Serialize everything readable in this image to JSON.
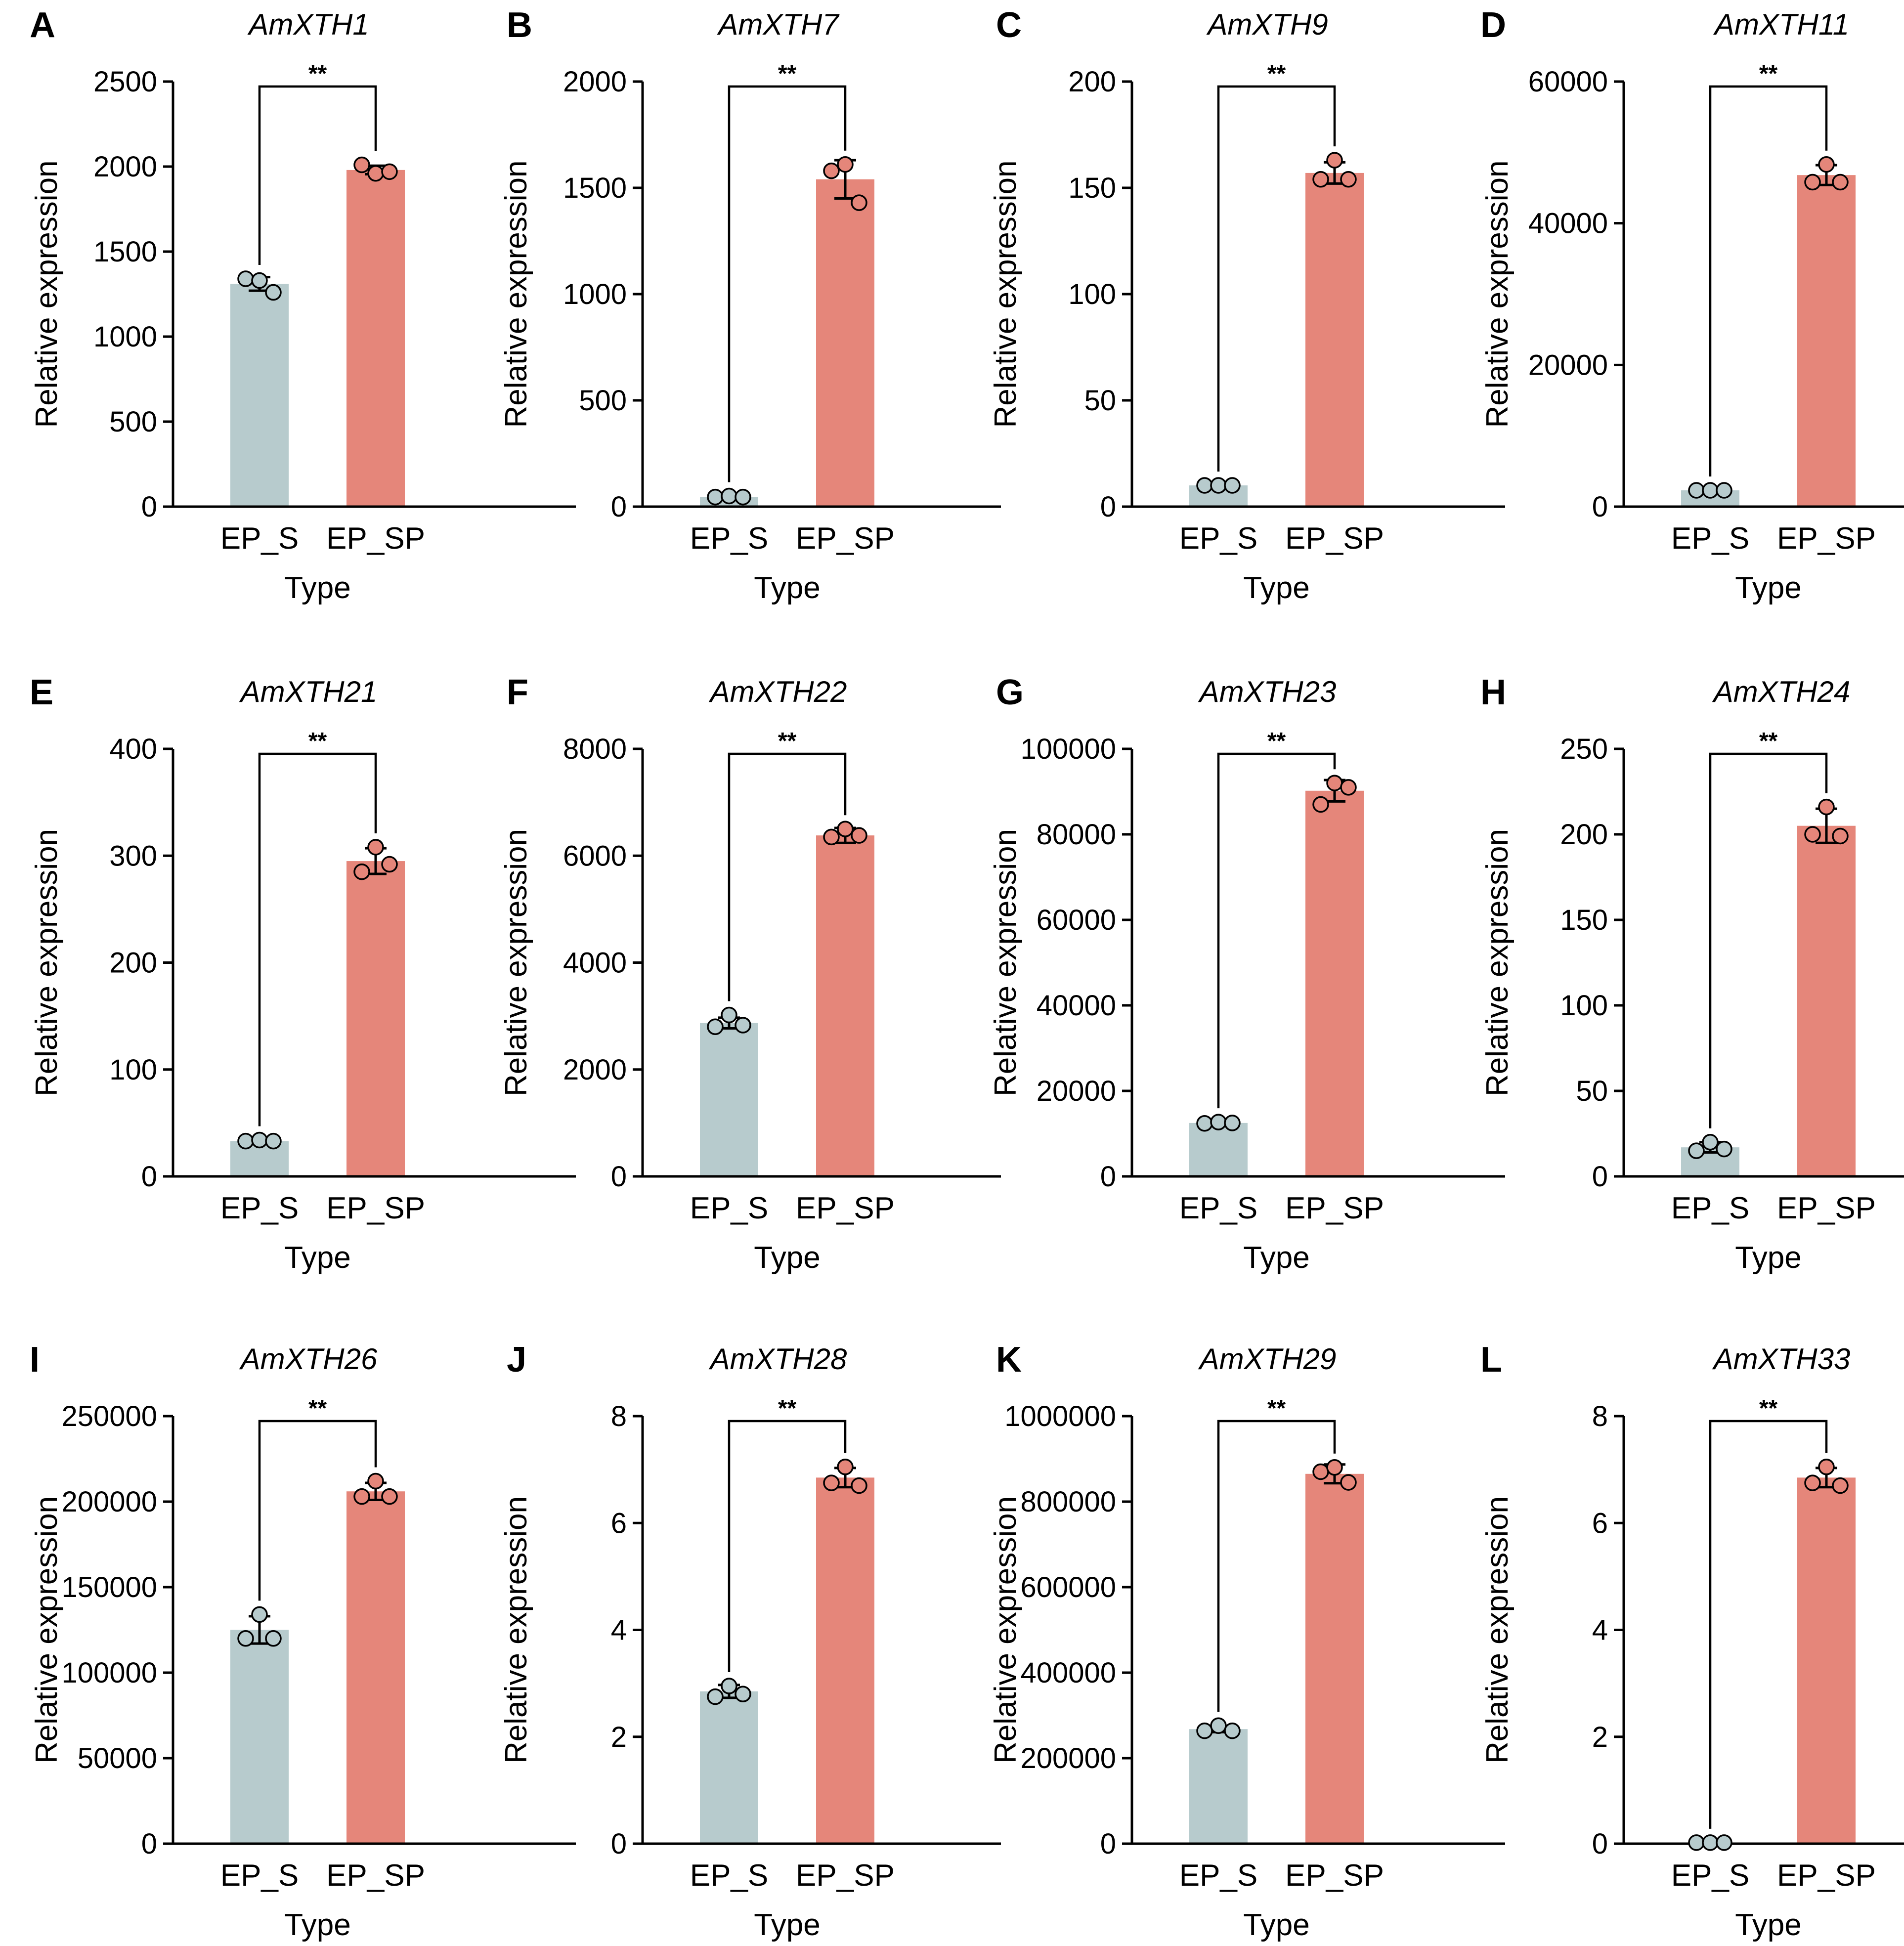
{
  "colors": {
    "ep_s_bar": "#b7cbcd",
    "ep_sp_bar": "#e5867a",
    "ep_s_point": "#b7cbcd",
    "ep_sp_point": "#e5867a",
    "axis": "#000000"
  },
  "chart_data": [
    {
      "panel": "A",
      "title": "AmXTH1",
      "type": "bar",
      "categories": [
        "EP_S",
        "EP_SP"
      ],
      "values": [
        1310,
        1980
      ],
      "points": [
        [
          1340,
          1330,
          1260
        ],
        [
          2010,
          1960,
          1970
        ]
      ],
      "errors": [
        40,
        25
      ],
      "ylim": [
        0,
        2500
      ],
      "yticks": [
        "0",
        "500",
        "1000",
        "1500",
        "2000",
        "2500"
      ],
      "ylabel": "Relative expression",
      "xlabel": "Type",
      "significance": "**"
    },
    {
      "panel": "B",
      "title": "AmXTH7",
      "type": "bar",
      "categories": [
        "EP_S",
        "EP_SP"
      ],
      "values": [
        45,
        1540
      ],
      "points": [
        [
          45,
          50,
          45
        ],
        [
          1580,
          1610,
          1430
        ]
      ],
      "errors": [
        3,
        90
      ],
      "ylim": [
        0,
        2000
      ],
      "yticks": [
        "0",
        "500",
        "1000",
        "1500",
        "2000"
      ],
      "ylabel": "Relative expression",
      "xlabel": "Type",
      "significance": "**"
    },
    {
      "panel": "C",
      "title": "AmXTH9",
      "type": "bar",
      "categories": [
        "EP_S",
        "EP_SP"
      ],
      "values": [
        10,
        157
      ],
      "points": [
        [
          10,
          10,
          10
        ],
        [
          154,
          163,
          154
        ]
      ],
      "errors": [
        0.5,
        5
      ],
      "ylim": [
        0,
        200
      ],
      "yticks": [
        "0",
        "50",
        "100",
        "150",
        "200"
      ],
      "ylabel": "Relative expression",
      "xlabel": "Type",
      "significance": "**"
    },
    {
      "panel": "D",
      "title": "AmXTH11",
      "type": "bar",
      "categories": [
        "EP_S",
        "EP_SP"
      ],
      "values": [
        2300,
        46800
      ],
      "points": [
        [
          2300,
          2300,
          2300
        ],
        [
          45800,
          48300,
          45800
        ]
      ],
      "errors": [
        100,
        1400
      ],
      "ylim": [
        0,
        60000
      ],
      "yticks": [
        "0",
        "20000",
        "40000",
        "60000"
      ],
      "ylabel": "Relative expression",
      "xlabel": "Type",
      "significance": "**"
    },
    {
      "panel": "E",
      "title": "AmXTH21",
      "type": "bar",
      "categories": [
        "EP_S",
        "EP_SP"
      ],
      "values": [
        33,
        295
      ],
      "points": [
        [
          33,
          34,
          33
        ],
        [
          285,
          308,
          292
        ]
      ],
      "errors": [
        1,
        12
      ],
      "ylim": [
        0,
        400
      ],
      "yticks": [
        "0",
        "100",
        "200",
        "300",
        "400"
      ],
      "ylabel": "Relative expression",
      "xlabel": "Type",
      "significance": "**"
    },
    {
      "panel": "F",
      "title": "AmXTH22",
      "type": "bar",
      "categories": [
        "EP_S",
        "EP_SP"
      ],
      "values": [
        2870,
        6380
      ],
      "points": [
        [
          2800,
          3020,
          2830
        ],
        [
          6350,
          6500,
          6380
        ]
      ],
      "errors": [
        100,
        140
      ],
      "ylim": [
        0,
        8000
      ],
      "yticks": [
        "0",
        "2000",
        "4000",
        "6000",
        "8000"
      ],
      "ylabel": "Relative expression",
      "xlabel": "Type",
      "significance": "**"
    },
    {
      "panel": "G",
      "title": "AmXTH23",
      "type": "bar",
      "categories": [
        "EP_S",
        "EP_SP"
      ],
      "values": [
        12500,
        90200
      ],
      "points": [
        [
          12400,
          12700,
          12500
        ],
        [
          87000,
          92000,
          91000
        ]
      ],
      "errors": [
        300,
        2500
      ],
      "ylim": [
        0,
        100000
      ],
      "yticks": [
        "0",
        "20000",
        "40000",
        "60000",
        "80000",
        "100000"
      ],
      "ylabel": "Relative expression",
      "xlabel": "Type",
      "significance": "**"
    },
    {
      "panel": "H",
      "title": "AmXTH24",
      "type": "bar",
      "categories": [
        "EP_S",
        "EP_SP"
      ],
      "values": [
        17,
        205
      ],
      "points": [
        [
          15,
          20,
          16
        ],
        [
          200,
          216,
          199
        ]
      ],
      "errors": [
        3,
        10
      ],
      "ylim": [
        0,
        250
      ],
      "yticks": [
        "0",
        "50",
        "100",
        "150",
        "200",
        "250"
      ],
      "ylabel": "Relative expression",
      "xlabel": "Type",
      "significance": "**"
    },
    {
      "panel": "I",
      "title": "AmXTH26",
      "type": "bar",
      "categories": [
        "EP_S",
        "EP_SP"
      ],
      "values": [
        125000,
        206000
      ],
      "points": [
        [
          120000,
          134000,
          120000
        ],
        [
          203000,
          212000,
          203000
        ]
      ],
      "errors": [
        8000,
        5000
      ],
      "ylim": [
        0,
        250000
      ],
      "yticks": [
        "0",
        "50000",
        "100000",
        "150000",
        "200000",
        "250000"
      ],
      "ylabel": "Relative expression",
      "xlabel": "Type",
      "significance": "**"
    },
    {
      "panel": "J",
      "title": "AmXTH28",
      "type": "bar",
      "categories": [
        "EP_S",
        "EP_SP"
      ],
      "values": [
        2.85,
        6.85
      ],
      "points": [
        [
          2.75,
          2.95,
          2.8
        ],
        [
          6.75,
          7.05,
          6.7
        ]
      ],
      "errors": [
        0.12,
        0.18
      ],
      "ylim": [
        0,
        8
      ],
      "yticks": [
        "0",
        "2",
        "4",
        "6",
        "8"
      ],
      "ylabel": "Relative expression",
      "xlabel": "Type",
      "significance": "**"
    },
    {
      "panel": "K",
      "title": "AmXTH29",
      "type": "bar",
      "categories": [
        "EP_S",
        "EP_SP"
      ],
      "values": [
        268000,
        865000
      ],
      "points": [
        [
          264000,
          276000,
          264000
        ],
        [
          870000,
          880000,
          845000
        ]
      ],
      "errors": [
        7000,
        22000
      ],
      "ylim": [
        0,
        1000000
      ],
      "yticks": [
        "0",
        "200000",
        "400000",
        "600000",
        "800000",
        "1000000"
      ],
      "ylabel": "Relative expression",
      "xlabel": "Type",
      "significance": "**"
    },
    {
      "panel": "L",
      "title": "AmXTH33",
      "type": "bar",
      "categories": [
        "EP_S",
        "EP_SP"
      ],
      "values": [
        0.02,
        6.85
      ],
      "points": [
        [
          0.02,
          0.02,
          0.02
        ],
        [
          6.75,
          7.05,
          6.7
        ]
      ],
      "errors": [
        0.005,
        0.18
      ],
      "ylim": [
        0,
        8
      ],
      "yticks": [
        "0",
        "2",
        "4",
        "6",
        "8"
      ],
      "ylabel": "Relative expression",
      "xlabel": "Type",
      "significance": "**"
    }
  ]
}
